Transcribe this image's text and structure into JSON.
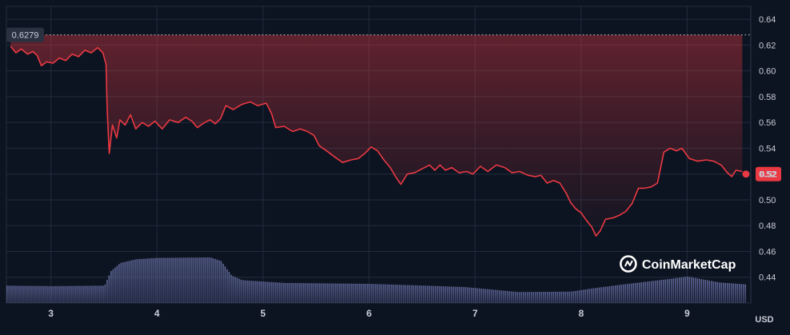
{
  "chart_data": {
    "type": "area",
    "title": "",
    "xlabel": "",
    "ylabel": "",
    "y_unit": "USD",
    "ylim": [
      0.42,
      0.65
    ],
    "yticks": [
      "0.44",
      "0.46",
      "0.48",
      "0.50",
      "0.52",
      "0.54",
      "0.56",
      "0.58",
      "0.60",
      "0.62",
      "0.64"
    ],
    "xticks": [
      {
        "label": "3",
        "x": 3
      },
      {
        "label": "4",
        "x": 4
      },
      {
        "label": "5",
        "x": 5
      },
      {
        "label": "6",
        "x": 6
      },
      {
        "label": "7",
        "x": 7
      },
      {
        "label": "8",
        "x": 8
      },
      {
        "label": "9",
        "x": 9
      }
    ],
    "xlim": [
      2.58,
      9.6
    ],
    "grid": true,
    "line_color": "#ea3943",
    "reference_line": {
      "value": 0.6279,
      "label": "0.6279"
    },
    "current_price": {
      "value": 0.52,
      "label": "0.52"
    },
    "watermark": "CoinMarketCap",
    "series": [
      {
        "values": [
          [
            2.62,
            0.619
          ],
          [
            2.67,
            0.614
          ],
          [
            2.72,
            0.617
          ],
          [
            2.78,
            0.613
          ],
          [
            2.83,
            0.615
          ],
          [
            2.87,
            0.612
          ],
          [
            2.91,
            0.604
          ],
          [
            2.96,
            0.607
          ],
          [
            3.02,
            0.606
          ],
          [
            3.08,
            0.61
          ],
          [
            3.14,
            0.608
          ],
          [
            3.2,
            0.613
          ],
          [
            3.26,
            0.611
          ],
          [
            3.32,
            0.616
          ],
          [
            3.38,
            0.614
          ],
          [
            3.44,
            0.618
          ],
          [
            3.49,
            0.614
          ],
          [
            3.52,
            0.605
          ],
          [
            3.53,
            0.57
          ],
          [
            3.55,
            0.536
          ],
          [
            3.58,
            0.558
          ],
          [
            3.62,
            0.548
          ],
          [
            3.65,
            0.562
          ],
          [
            3.7,
            0.558
          ],
          [
            3.75,
            0.566
          ],
          [
            3.8,
            0.555
          ],
          [
            3.86,
            0.56
          ],
          [
            3.92,
            0.557
          ],
          [
            3.98,
            0.561
          ],
          [
            4.05,
            0.555
          ],
          [
            4.12,
            0.562
          ],
          [
            4.2,
            0.56
          ],
          [
            4.27,
            0.564
          ],
          [
            4.33,
            0.561
          ],
          [
            4.38,
            0.556
          ],
          [
            4.45,
            0.56
          ],
          [
            4.5,
            0.562
          ],
          [
            4.55,
            0.559
          ],
          [
            4.6,
            0.563
          ],
          [
            4.65,
            0.573
          ],
          [
            4.72,
            0.57
          ],
          [
            4.8,
            0.574
          ],
          [
            4.88,
            0.576
          ],
          [
            4.95,
            0.573
          ],
          [
            5.03,
            0.575
          ],
          [
            5.08,
            0.567
          ],
          [
            5.12,
            0.556
          ],
          [
            5.2,
            0.557
          ],
          [
            5.28,
            0.553
          ],
          [
            5.35,
            0.555
          ],
          [
            5.42,
            0.553
          ],
          [
            5.48,
            0.55
          ],
          [
            5.53,
            0.542
          ],
          [
            5.6,
            0.538
          ],
          [
            5.68,
            0.533
          ],
          [
            5.75,
            0.529
          ],
          [
            5.83,
            0.531
          ],
          [
            5.9,
            0.532
          ],
          [
            5.96,
            0.536
          ],
          [
            6.02,
            0.541
          ],
          [
            6.08,
            0.538
          ],
          [
            6.14,
            0.531
          ],
          [
            6.2,
            0.525
          ],
          [
            6.25,
            0.518
          ],
          [
            6.3,
            0.512
          ],
          [
            6.36,
            0.52
          ],
          [
            6.43,
            0.521
          ],
          [
            6.5,
            0.524
          ],
          [
            6.57,
            0.527
          ],
          [
            6.62,
            0.523
          ],
          [
            6.67,
            0.527
          ],
          [
            6.72,
            0.523
          ],
          [
            6.78,
            0.525
          ],
          [
            6.85,
            0.521
          ],
          [
            6.92,
            0.522
          ],
          [
            6.98,
            0.52
          ],
          [
            7.05,
            0.526
          ],
          [
            7.12,
            0.522
          ],
          [
            7.2,
            0.527
          ],
          [
            7.28,
            0.525
          ],
          [
            7.35,
            0.521
          ],
          [
            7.42,
            0.522
          ],
          [
            7.5,
            0.519
          ],
          [
            7.57,
            0.518
          ],
          [
            7.62,
            0.519
          ],
          [
            7.68,
            0.513
          ],
          [
            7.74,
            0.515
          ],
          [
            7.8,
            0.513
          ],
          [
            7.86,
            0.505
          ],
          [
            7.9,
            0.498
          ],
          [
            7.95,
            0.493
          ],
          [
            8.0,
            0.49
          ],
          [
            8.05,
            0.484
          ],
          [
            8.1,
            0.479
          ],
          [
            8.14,
            0.472
          ],
          [
            8.18,
            0.476
          ],
          [
            8.23,
            0.485
          ],
          [
            8.3,
            0.486
          ],
          [
            8.36,
            0.488
          ],
          [
            8.42,
            0.491
          ],
          [
            8.48,
            0.497
          ],
          [
            8.54,
            0.509
          ],
          [
            8.6,
            0.509
          ],
          [
            8.66,
            0.51
          ],
          [
            8.72,
            0.513
          ],
          [
            8.78,
            0.537
          ],
          [
            8.84,
            0.54
          ],
          [
            8.9,
            0.538
          ],
          [
            8.95,
            0.54
          ],
          [
            9.02,
            0.532
          ],
          [
            9.1,
            0.53
          ],
          [
            9.18,
            0.531
          ],
          [
            9.25,
            0.53
          ],
          [
            9.32,
            0.527
          ],
          [
            9.38,
            0.521
          ],
          [
            9.42,
            0.518
          ],
          [
            9.46,
            0.523
          ],
          [
            9.52,
            0.522
          ]
        ]
      }
    ],
    "volume": [
      {
        "x": 2.58,
        "v": 0.38
      },
      {
        "x": 3.0,
        "v": 0.37
      },
      {
        "x": 3.5,
        "v": 0.38
      },
      {
        "x": 3.56,
        "v": 0.7
      },
      {
        "x": 3.65,
        "v": 0.88
      },
      {
        "x": 3.8,
        "v": 0.96
      },
      {
        "x": 4.0,
        "v": 0.99
      },
      {
        "x": 4.5,
        "v": 1.0
      },
      {
        "x": 4.6,
        "v": 0.92
      },
      {
        "x": 4.7,
        "v": 0.6
      },
      {
        "x": 4.8,
        "v": 0.5
      },
      {
        "x": 5.2,
        "v": 0.44
      },
      {
        "x": 6.0,
        "v": 0.42
      },
      {
        "x": 6.4,
        "v": 0.39
      },
      {
        "x": 6.9,
        "v": 0.35
      },
      {
        "x": 7.4,
        "v": 0.24
      },
      {
        "x": 7.9,
        "v": 0.25
      },
      {
        "x": 8.1,
        "v": 0.32
      },
      {
        "x": 8.4,
        "v": 0.41
      },
      {
        "x": 8.8,
        "v": 0.52
      },
      {
        "x": 9.0,
        "v": 0.58
      },
      {
        "x": 9.3,
        "v": 0.45
      },
      {
        "x": 9.6,
        "v": 0.4
      }
    ]
  }
}
